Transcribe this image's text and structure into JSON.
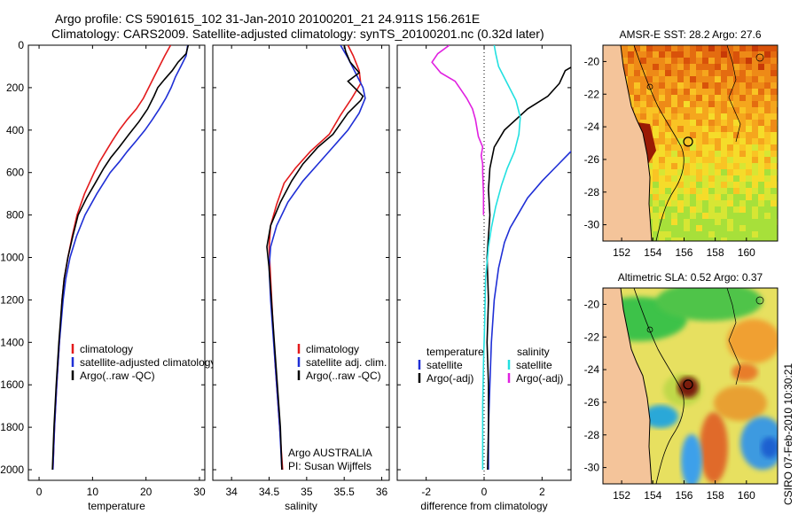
{
  "title_line1": "Argo profile: CS 5901615_102 31-Jan-2010 20100201_21 24.911S 156.261E",
  "title_line2": "Climatology: CARS2009. Satellite-adjusted climatology: synTS_20100201.nc (0.32d later)",
  "colors": {
    "climatology": "#e31a1c",
    "satellite": "#1f2fd6",
    "argo": "#000000",
    "argo_adj": "#000000",
    "sat_salinity": "#22e0e0",
    "argo_adj_salinity": "#e020e0",
    "land": "#f4c49a"
  },
  "depth_axis": {
    "ylim": [
      0,
      2050
    ],
    "ticks": [
      0,
      200,
      400,
      600,
      800,
      1000,
      1200,
      1400,
      1600,
      1800,
      2000
    ]
  },
  "chart_data": [
    {
      "type": "line",
      "xlabel": "temperature",
      "xlim": [
        -2,
        31
      ],
      "xticks": [
        0,
        10,
        20,
        30
      ],
      "series": [
        {
          "name": "climatology",
          "color_key": "climatology",
          "points": [
            [
              24.6,
              0
            ],
            [
              23.5,
              50
            ],
            [
              22.5,
              100
            ],
            [
              21.5,
              150
            ],
            [
              20.5,
              200
            ],
            [
              19.5,
              250
            ],
            [
              18.2,
              300
            ],
            [
              16.5,
              350
            ],
            [
              15,
              400
            ],
            [
              13.7,
              450
            ],
            [
              12.5,
              500
            ],
            [
              11.3,
              550
            ],
            [
              10.3,
              600
            ],
            [
              8.5,
              700
            ],
            [
              7.1,
              800
            ],
            [
              6.2,
              900
            ],
            [
              5.4,
              1000
            ],
            [
              4.7,
              1100
            ],
            [
              4.3,
              1200
            ],
            [
              3.8,
              1400
            ],
            [
              3.3,
              1600
            ],
            [
              2.9,
              1800
            ],
            [
              2.6,
              2000
            ]
          ]
        },
        {
          "name": "satellite-adjusted climatology",
          "color_key": "satellite",
          "points": [
            [
              27.8,
              0
            ],
            [
              27.5,
              50
            ],
            [
              26.5,
              100
            ],
            [
              25.5,
              150
            ],
            [
              24.7,
              200
            ],
            [
              23.7,
              250
            ],
            [
              22.5,
              300
            ],
            [
              21.2,
              350
            ],
            [
              19.8,
              400
            ],
            [
              18.2,
              450
            ],
            [
              16.5,
              500
            ],
            [
              15,
              550
            ],
            [
              13.3,
              600
            ],
            [
              10.8,
              700
            ],
            [
              8.6,
              800
            ],
            [
              7,
              900
            ],
            [
              5.8,
              1000
            ],
            [
              5,
              1100
            ],
            [
              4.5,
              1200
            ],
            [
              3.8,
              1400
            ],
            [
              3.3,
              1600
            ],
            [
              2.9,
              1800
            ],
            [
              2.6,
              2000
            ]
          ]
        },
        {
          "name": "Argo(..raw -QC)",
          "color_key": "argo",
          "points": [
            [
              27.9,
              0
            ],
            [
              27.5,
              40
            ],
            [
              26,
              80
            ],
            [
              24.9,
              120
            ],
            [
              23.5,
              160
            ],
            [
              22.2,
              200
            ],
            [
              21.5,
              240
            ],
            [
              20.3,
              300
            ],
            [
              18.7,
              360
            ],
            [
              16.8,
              420
            ],
            [
              15,
              480
            ],
            [
              13.4,
              530
            ],
            [
              12.1,
              580
            ],
            [
              10.5,
              650
            ],
            [
              8.9,
              720
            ],
            [
              7.3,
              800
            ],
            [
              6.3,
              900
            ],
            [
              5.4,
              1000
            ],
            [
              4.7,
              1100
            ],
            [
              4.3,
              1200
            ],
            [
              3.7,
              1400
            ],
            [
              3.2,
              1600
            ],
            [
              2.8,
              1800
            ],
            [
              2.5,
              2000
            ]
          ]
        }
      ],
      "legend": [
        "climatology",
        "satellite-adjusted climatology",
        "Argo(..raw -QC)"
      ]
    },
    {
      "type": "line",
      "xlabel": "salinity",
      "xlim": [
        33.75,
        36.1
      ],
      "xticks": [
        34,
        34.5,
        35,
        35.5,
        36
      ],
      "series": [
        {
          "name": "climatology",
          "color_key": "climatology",
          "points": [
            [
              35.55,
              0
            ],
            [
              35.62,
              50
            ],
            [
              35.7,
              120
            ],
            [
              35.72,
              180
            ],
            [
              35.6,
              250
            ],
            [
              35.45,
              330
            ],
            [
              35.3,
              420
            ],
            [
              35.05,
              500
            ],
            [
              34.85,
              580
            ],
            [
              34.7,
              650
            ],
            [
              34.6,
              750
            ],
            [
              34.52,
              850
            ],
            [
              34.5,
              950
            ],
            [
              34.52,
              1100
            ],
            [
              34.55,
              1300
            ],
            [
              34.58,
              1500
            ],
            [
              34.62,
              1700
            ],
            [
              34.66,
              1900
            ],
            [
              34.68,
              2000
            ]
          ]
        },
        {
          "name": "satellite adj. clim.",
          "color_key": "satellite",
          "points": [
            [
              35.45,
              0
            ],
            [
              35.55,
              60
            ],
            [
              35.65,
              130
            ],
            [
              35.75,
              200
            ],
            [
              35.78,
              250
            ],
            [
              35.7,
              320
            ],
            [
              35.55,
              400
            ],
            [
              35.35,
              480
            ],
            [
              35.15,
              560
            ],
            [
              34.95,
              640
            ],
            [
              34.75,
              740
            ],
            [
              34.6,
              850
            ],
            [
              34.52,
              950
            ],
            [
              34.5,
              1050
            ],
            [
              34.52,
              1200
            ],
            [
              34.56,
              1400
            ],
            [
              34.6,
              1600
            ],
            [
              34.64,
              1800
            ],
            [
              34.67,
              2000
            ]
          ]
        },
        {
          "name": "Argo(..raw -QC)",
          "color_key": "argo",
          "points": [
            [
              35.5,
              0
            ],
            [
              35.52,
              30
            ],
            [
              35.58,
              80
            ],
            [
              35.7,
              130
            ],
            [
              35.55,
              170
            ],
            [
              35.75,
              240
            ],
            [
              35.72,
              260
            ],
            [
              35.55,
              320
            ],
            [
              35.35,
              420
            ],
            [
              35.15,
              480
            ],
            [
              34.95,
              560
            ],
            [
              34.8,
              640
            ],
            [
              34.65,
              740
            ],
            [
              34.52,
              850
            ],
            [
              34.47,
              950
            ],
            [
              34.5,
              1050
            ],
            [
              34.53,
              1200
            ],
            [
              34.57,
              1400
            ],
            [
              34.61,
              1600
            ],
            [
              34.65,
              1800
            ],
            [
              34.67,
              2000
            ]
          ]
        }
      ],
      "legend": [
        "climatology",
        "satellite adj. clim.",
        "Argo(..raw -QC)"
      ]
    },
    {
      "type": "line",
      "xlabel": "difference from climatology",
      "xlim": [
        -3,
        3
      ],
      "xticks": [
        -2,
        0,
        2
      ],
      "series": [
        {
          "name": "temperature satellite",
          "color_key": "satellite",
          "points": [
            [
              3.5,
              420
            ],
            [
              3,
              500
            ],
            [
              2.5,
              570
            ],
            [
              2,
              640
            ],
            [
              1.5,
              720
            ],
            [
              1.2,
              790
            ],
            [
              0.9,
              860
            ],
            [
              0.7,
              930
            ],
            [
              0.5,
              1050
            ],
            [
              0.35,
              1200
            ],
            [
              0.25,
              1400
            ],
            [
              0.2,
              1600
            ],
            [
              0.15,
              1800
            ],
            [
              0.15,
              2000
            ]
          ]
        },
        {
          "name": "temperature Argo(-adj)",
          "color_key": "argo_adj",
          "points": [
            [
              3.3,
              80
            ],
            [
              2.8,
              120
            ],
            [
              2.6,
              180
            ],
            [
              2.2,
              240
            ],
            [
              1.5,
              300
            ],
            [
              0.7,
              400
            ],
            [
              0.35,
              480
            ],
            [
              0.2,
              580
            ],
            [
              0.15,
              680
            ],
            [
              0.2,
              800
            ],
            [
              0.15,
              900
            ],
            [
              0.1,
              1000
            ],
            [
              0.15,
              1200
            ],
            [
              0.1,
              1400
            ],
            [
              0.15,
              1600
            ],
            [
              0.15,
              1800
            ],
            [
              0.12,
              2000
            ]
          ]
        },
        {
          "name": "salinity satellite",
          "color_key": "sat_salinity",
          "points": [
            [
              0.35,
              0
            ],
            [
              0.4,
              40
            ],
            [
              0.5,
              100
            ],
            [
              0.8,
              180
            ],
            [
              1.1,
              260
            ],
            [
              1.25,
              340
            ],
            [
              1.2,
              420
            ],
            [
              1.05,
              500
            ],
            [
              0.8,
              580
            ],
            [
              0.6,
              660
            ],
            [
              0.4,
              760
            ],
            [
              0.25,
              860
            ],
            [
              0.15,
              950
            ],
            [
              0.05,
              1100
            ],
            [
              0.02,
              1300
            ],
            [
              -0.02,
              1500
            ],
            [
              -0.05,
              1700
            ],
            [
              -0.05,
              2000
            ]
          ]
        },
        {
          "name": "salinity Argo(-adj)",
          "color_key": "argo_adj_salinity",
          "points": [
            [
              -1.2,
              0
            ],
            [
              -1.6,
              40
            ],
            [
              -1.8,
              80
            ],
            [
              -1.5,
              130
            ],
            [
              -1,
              170
            ],
            [
              -0.8,
              210
            ],
            [
              -0.6,
              250
            ],
            [
              -0.4,
              300
            ],
            [
              -0.3,
              350
            ],
            [
              -0.2,
              430
            ],
            [
              -0.05,
              480
            ],
            [
              -0.1,
              520
            ],
            [
              -0.05,
              560
            ],
            [
              -0.05,
              600
            ],
            [
              -0.02,
              700
            ],
            [
              -0.02,
              800
            ]
          ]
        }
      ],
      "legend_headers": [
        "temperature",
        "salinity"
      ],
      "legend": [
        "satellite",
        "Argo(-adj)",
        "satellite",
        "Argo(-adj)"
      ]
    },
    {
      "type": "heatmap",
      "title": "AMSR-E SST: 28.2 Argo: 27.6",
      "xlim": [
        150.8,
        162
      ],
      "ylim": [
        -31,
        -19
      ],
      "xticks": [
        152,
        154,
        156,
        158,
        160
      ],
      "yticks": [
        -20,
        -22,
        -24,
        -26,
        -28,
        -30
      ],
      "marker": {
        "lon": 156.261,
        "lat": -24.911
      }
    },
    {
      "type": "heatmap",
      "title": "Altimetric SLA: 0.52 Argo: 0.37",
      "xlim": [
        150.8,
        162
      ],
      "ylim": [
        -31,
        -19
      ],
      "xticks": [
        152,
        154,
        156,
        158,
        160
      ],
      "yticks": [
        -20,
        -22,
        -24,
        -26,
        -28,
        -30
      ],
      "marker": {
        "lon": 156.261,
        "lat": -24.911
      }
    }
  ],
  "annotation": {
    "line1": "Argo AUSTRALIA",
    "line2": "PI: Susan Wijffels"
  },
  "side_label": "CSIRO 07-Feb-2010 10:30:21"
}
